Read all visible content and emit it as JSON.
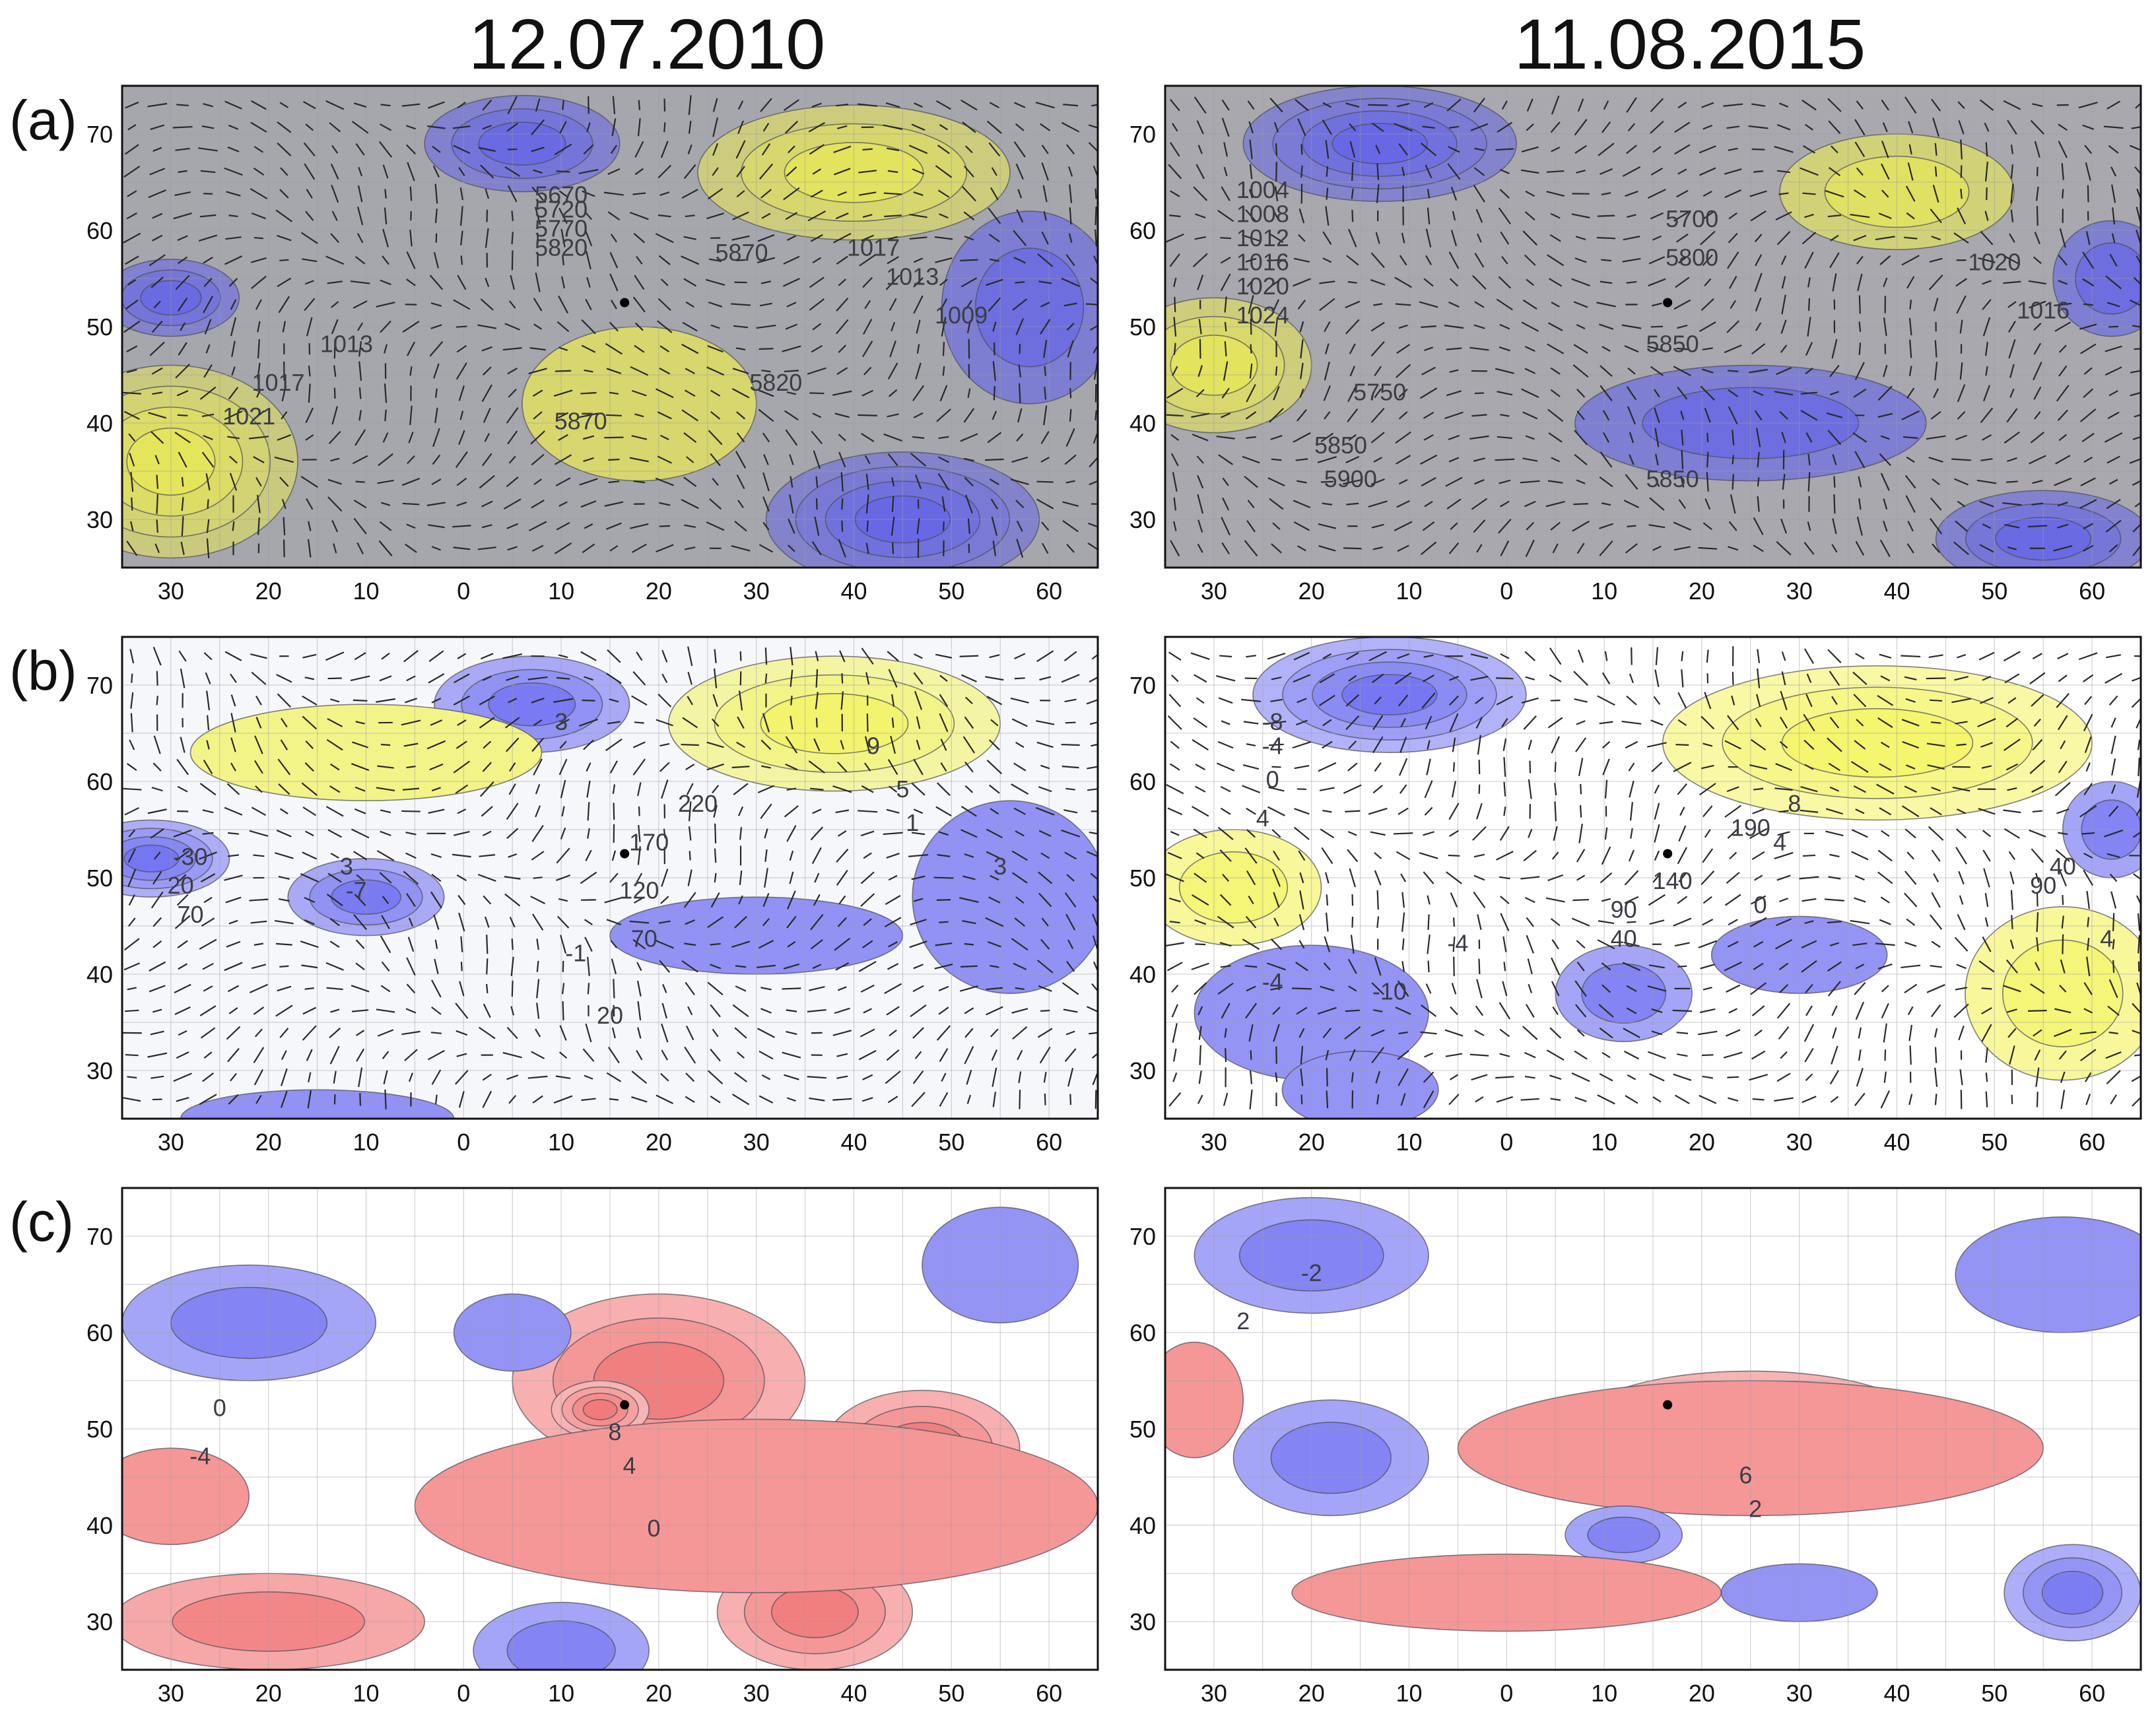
{
  "titles": [
    "12.07.2010",
    "11.08.2015"
  ],
  "row_labels": [
    "(a)",
    "(b)",
    "(c)"
  ],
  "axes": {
    "lon_ticks": [
      "30",
      "20",
      "10",
      "0",
      "10",
      "20",
      "30",
      "40",
      "50",
      "60"
    ],
    "lat_ticks": [
      "70",
      "60",
      "50",
      "40",
      "30"
    ],
    "lon_range": [
      -35,
      65
    ],
    "lat_range": [
      25,
      75
    ],
    "grid": true
  },
  "marker": {
    "lon": 16.5,
    "lat": 52.5,
    "name": "site-marker"
  },
  "colors": {
    "blue": "#5b5bf0",
    "yellow": "#f2f24a",
    "gray": "#a9a9b0",
    "red": "#ef5f5f",
    "white": "#ffffff"
  },
  "panels": [
    {
      "id": "a-2010",
      "row": 0,
      "col": 0,
      "scheme": "by",
      "base": "#a6a6ad",
      "vectors": true,
      "blobs": [
        {
          "lon": -30,
          "lat": 36,
          "rx": 13,
          "ry": 10,
          "kind": "y",
          "levels": 4
        },
        {
          "lon": -30,
          "lat": 53,
          "rx": 7,
          "ry": 4,
          "kind": "b",
          "levels": 3
        },
        {
          "lon": 6,
          "lat": 69,
          "rx": 10,
          "ry": 5,
          "kind": "b",
          "levels": 3
        },
        {
          "lon": 40,
          "lat": 66,
          "rx": 16,
          "ry": 7,
          "kind": "y",
          "levels": 3
        },
        {
          "lon": 45,
          "lat": 30,
          "rx": 14,
          "ry": 7,
          "kind": "b",
          "levels": 4
        },
        {
          "lon": 58,
          "lat": 52,
          "rx": 9,
          "ry": 10,
          "kind": "b",
          "levels": 2
        },
        {
          "lon": 18,
          "lat": 42,
          "rx": 12,
          "ry": 8,
          "kind": "y",
          "levels": 1
        }
      ],
      "labels": [
        {
          "text": "5670",
          "lon": 10,
          "lat": 63.5
        },
        {
          "text": "5720",
          "lon": 10,
          "lat": 62
        },
        {
          "text": "5770",
          "lon": 10,
          "lat": 60
        },
        {
          "text": "5820",
          "lon": 10,
          "lat": 58
        },
        {
          "text": "5870",
          "lon": 28.5,
          "lat": 57.5
        },
        {
          "text": "1017",
          "lon": 42,
          "lat": 58
        },
        {
          "text": "1013",
          "lon": 46,
          "lat": 55
        },
        {
          "text": "1009",
          "lon": 51,
          "lat": 51
        },
        {
          "text": "1013",
          "lon": -12,
          "lat": 48
        },
        {
          "text": "1017",
          "lon": -19,
          "lat": 44
        },
        {
          "text": "1021",
          "lon": -22,
          "lat": 40.5
        },
        {
          "text": "5870",
          "lon": 12,
          "lat": 40
        },
        {
          "text": "5820",
          "lon": 32,
          "lat": 44
        }
      ]
    },
    {
      "id": "a-2015",
      "row": 0,
      "col": 1,
      "scheme": "by",
      "base": "#a8a8ae",
      "vectors": true,
      "blobs": [
        {
          "lon": -13,
          "lat": 69,
          "rx": 14,
          "ry": 6,
          "kind": "b",
          "levels": 4
        },
        {
          "lon": -30,
          "lat": 46,
          "rx": 10,
          "ry": 7,
          "kind": "y",
          "levels": 3
        },
        {
          "lon": 40,
          "lat": 64,
          "rx": 12,
          "ry": 6,
          "kind": "y",
          "levels": 2
        },
        {
          "lon": 55,
          "lat": 28,
          "rx": 11,
          "ry": 5,
          "kind": "b",
          "levels": 3
        },
        {
          "lon": 25,
          "lat": 40,
          "rx": 18,
          "ry": 6,
          "kind": "b",
          "levels": 2
        },
        {
          "lon": 62,
          "lat": 55,
          "rx": 6,
          "ry": 6,
          "kind": "b",
          "levels": 2
        }
      ],
      "labels": [
        {
          "text": "1004",
          "lon": -25,
          "lat": 64
        },
        {
          "text": "1008",
          "lon": -25,
          "lat": 61.5
        },
        {
          "text": "1012",
          "lon": -25,
          "lat": 59
        },
        {
          "text": "1016",
          "lon": -25,
          "lat": 56.5
        },
        {
          "text": "1020",
          "lon": -25,
          "lat": 54
        },
        {
          "text": "1024",
          "lon": -25,
          "lat": 51
        },
        {
          "text": "5700",
          "lon": 19,
          "lat": 61
        },
        {
          "text": "5800",
          "lon": 19,
          "lat": 57
        },
        {
          "text": "5850",
          "lon": 17,
          "lat": 48
        },
        {
          "text": "1020",
          "lon": 50,
          "lat": 56.5
        },
        {
          "text": "1016",
          "lon": 55,
          "lat": 51.5
        },
        {
          "text": "5750",
          "lon": -13,
          "lat": 43
        },
        {
          "text": "5850",
          "lon": -17,
          "lat": 37.5
        },
        {
          "text": "5900",
          "lon": -16,
          "lat": 34
        },
        {
          "text": "5850",
          "lon": 17,
          "lat": 34
        }
      ]
    },
    {
      "id": "b-2010",
      "row": 1,
      "col": 0,
      "scheme": "by",
      "base": "#f6f7fb",
      "vectors": true,
      "blobs": [
        {
          "lon": -32,
          "lat": 52,
          "rx": 8,
          "ry": 4,
          "kind": "b",
          "levels": 4
        },
        {
          "lon": -10,
          "lat": 48,
          "rx": 8,
          "ry": 4,
          "kind": "b",
          "levels": 3
        },
        {
          "lon": 7,
          "lat": 68,
          "rx": 10,
          "ry": 5,
          "kind": "b",
          "levels": 3
        },
        {
          "lon": 38,
          "lat": 66,
          "rx": 17,
          "ry": 7,
          "kind": "y",
          "levels": 3
        },
        {
          "lon": 56,
          "lat": 48,
          "rx": 10,
          "ry": 10,
          "kind": "b",
          "levels": 1
        },
        {
          "lon": 30,
          "lat": 44,
          "rx": 15,
          "ry": 4,
          "kind": "b",
          "levels": 1
        },
        {
          "lon": -10,
          "lat": 63,
          "rx": 18,
          "ry": 5,
          "kind": "y",
          "levels": 1
        },
        {
          "lon": -15,
          "lat": 25,
          "rx": 14,
          "ry": 3,
          "kind": "b",
          "levels": 1
        }
      ],
      "labels": [
        {
          "text": "3",
          "lon": 10,
          "lat": 66
        },
        {
          "text": "9",
          "lon": 42,
          "lat": 63.5
        },
        {
          "text": "220",
          "lon": 24,
          "lat": 57.5
        },
        {
          "text": "5",
          "lon": 45,
          "lat": 59
        },
        {
          "text": "1",
          "lon": 46,
          "lat": 55.5
        },
        {
          "text": "170",
          "lon": 19,
          "lat": 53.5
        },
        {
          "text": "3",
          "lon": 55,
          "lat": 51
        },
        {
          "text": "3",
          "lon": -12,
          "lat": 51
        },
        {
          "text": "-7",
          "lon": -11,
          "lat": 48.5
        },
        {
          "text": "-30",
          "lon": -28,
          "lat": 52
        },
        {
          "text": "20",
          "lon": -29,
          "lat": 49
        },
        {
          "text": "70",
          "lon": -28,
          "lat": 46
        },
        {
          "text": "120",
          "lon": 18,
          "lat": 48.5
        },
        {
          "text": "70",
          "lon": 18.5,
          "lat": 43.5
        },
        {
          "text": "-1",
          "lon": 11.5,
          "lat": 42
        },
        {
          "text": "20",
          "lon": 15,
          "lat": 35.5
        }
      ]
    },
    {
      "id": "b-2015",
      "row": 1,
      "col": 1,
      "scheme": "by",
      "base": "#ffffff",
      "vectors": true,
      "blobs": [
        {
          "lon": -12,
          "lat": 69,
          "rx": 14,
          "ry": 6,
          "kind": "b",
          "levels": 4
        },
        {
          "lon": 38,
          "lat": 64,
          "rx": 22,
          "ry": 8,
          "kind": "y",
          "levels": 3
        },
        {
          "lon": -28,
          "lat": 49,
          "rx": 9,
          "ry": 6,
          "kind": "y",
          "levels": 2
        },
        {
          "lon": 57,
          "lat": 38,
          "rx": 10,
          "ry": 9,
          "kind": "y",
          "levels": 2
        },
        {
          "lon": 12,
          "lat": 38,
          "rx": 7,
          "ry": 5,
          "kind": "b",
          "levels": 2
        },
        {
          "lon": -20,
          "lat": 36,
          "rx": 12,
          "ry": 7,
          "kind": "b",
          "levels": 1
        },
        {
          "lon": -15,
          "lat": 28,
          "rx": 8,
          "ry": 4,
          "kind": "b",
          "levels": 1
        },
        {
          "lon": 62,
          "lat": 55,
          "rx": 5,
          "ry": 5,
          "kind": "b",
          "levels": 2
        },
        {
          "lon": 30,
          "lat": 42,
          "rx": 9,
          "ry": 4,
          "kind": "b",
          "levels": 1
        }
      ],
      "labels": [
        {
          "text": "-8",
          "lon": -24,
          "lat": 66
        },
        {
          "text": "-4",
          "lon": -24,
          "lat": 63.5
        },
        {
          "text": "0",
          "lon": -24,
          "lat": 60
        },
        {
          "text": "4",
          "lon": -25,
          "lat": 56
        },
        {
          "text": "8",
          "lon": 29.5,
          "lat": 57.5
        },
        {
          "text": "190",
          "lon": 25,
          "lat": 55
        },
        {
          "text": "4",
          "lon": 28,
          "lat": 53.5
        },
        {
          "text": "140",
          "lon": 17,
          "lat": 49.5
        },
        {
          "text": "0",
          "lon": 26,
          "lat": 47
        },
        {
          "text": "90",
          "lon": 12,
          "lat": 46.5
        },
        {
          "text": "40",
          "lon": 12,
          "lat": 43.5
        },
        {
          "text": "40",
          "lon": 57,
          "lat": 51
        },
        {
          "text": "90",
          "lon": 55,
          "lat": 49
        },
        {
          "text": "4",
          "lon": 61.5,
          "lat": 43.5
        },
        {
          "text": "-4",
          "lon": -5,
          "lat": 43
        },
        {
          "text": "-4",
          "lon": -24,
          "lat": 39
        },
        {
          "text": "-10",
          "lon": -12,
          "lat": 38
        }
      ]
    },
    {
      "id": "c-2010",
      "row": 2,
      "col": 0,
      "scheme": "rb",
      "base": "#ffffff",
      "vectors": false,
      "blobs": [
        {
          "lon": 20,
          "lat": 55,
          "rx": 15,
          "ry": 9,
          "kind": "r",
          "levels": 3
        },
        {
          "lon": 14,
          "lat": 52,
          "rx": 5,
          "ry": 3,
          "kind": "r",
          "levels": 4
        },
        {
          "lon": 47,
          "lat": 48,
          "rx": 10,
          "ry": 6,
          "kind": "r",
          "levels": 3
        },
        {
          "lon": -20,
          "lat": 30,
          "rx": 16,
          "ry": 5,
          "kind": "r",
          "levels": 2
        },
        {
          "lon": 36,
          "lat": 31,
          "rx": 10,
          "ry": 6,
          "kind": "r",
          "levels": 3
        },
        {
          "lon": -22,
          "lat": 61,
          "rx": 13,
          "ry": 6,
          "kind": "b",
          "levels": 2
        },
        {
          "lon": 5,
          "lat": 60,
          "rx": 6,
          "ry": 4,
          "kind": "b",
          "levels": 1
        },
        {
          "lon": 55,
          "lat": 67,
          "rx": 8,
          "ry": 6,
          "kind": "b",
          "levels": 1
        },
        {
          "lon": 10,
          "lat": 27,
          "rx": 9,
          "ry": 5,
          "kind": "b",
          "levels": 2
        },
        {
          "lon": -30,
          "lat": 43,
          "rx": 8,
          "ry": 5,
          "kind": "r",
          "levels": 1
        },
        {
          "lon": 30,
          "lat": 42,
          "rx": 35,
          "ry": 9,
          "kind": "r",
          "levels": 1
        }
      ],
      "labels": [
        {
          "text": "0",
          "lon": -25,
          "lat": 52
        },
        {
          "text": "-4",
          "lon": -27,
          "lat": 47
        },
        {
          "text": "8",
          "lon": 15.5,
          "lat": 49.5
        },
        {
          "text": "4",
          "lon": 17,
          "lat": 46
        },
        {
          "text": "0",
          "lon": 19.5,
          "lat": 39.5
        }
      ]
    },
    {
      "id": "c-2015",
      "row": 2,
      "col": 1,
      "scheme": "rb",
      "base": "#ffffff",
      "vectors": false,
      "blobs": [
        {
          "lon": 25,
          "lat": 51,
          "rx": 17,
          "ry": 5,
          "kind": "r",
          "levels": 4
        },
        {
          "lon": 25,
          "lat": 48,
          "rx": 30,
          "ry": 7,
          "kind": "r",
          "levels": 1
        },
        {
          "lon": -20,
          "lat": 68,
          "rx": 12,
          "ry": 6,
          "kind": "b",
          "levels": 2
        },
        {
          "lon": -18,
          "lat": 47,
          "rx": 10,
          "ry": 6,
          "kind": "b",
          "levels": 2
        },
        {
          "lon": 58,
          "lat": 33,
          "rx": 7,
          "ry": 5,
          "kind": "b",
          "levels": 3
        },
        {
          "lon": 57,
          "lat": 66,
          "rx": 11,
          "ry": 6,
          "kind": "b",
          "levels": 1
        },
        {
          "lon": 12,
          "lat": 39,
          "rx": 6,
          "ry": 3,
          "kind": "b",
          "levels": 2
        },
        {
          "lon": -32,
          "lat": 53,
          "rx": 5,
          "ry": 6,
          "kind": "r",
          "levels": 1
        },
        {
          "lon": 0,
          "lat": 33,
          "rx": 22,
          "ry": 4,
          "kind": "r",
          "levels": 1
        },
        {
          "lon": 30,
          "lat": 33,
          "rx": 8,
          "ry": 3,
          "kind": "b",
          "levels": 1
        }
      ],
      "labels": [
        {
          "text": "-2",
          "lon": -20,
          "lat": 66
        },
        {
          "text": "2",
          "lon": -27,
          "lat": 61
        },
        {
          "text": "6",
          "lon": 24.5,
          "lat": 45
        },
        {
          "text": "2",
          "lon": 25.5,
          "lat": 41.5
        }
      ]
    }
  ]
}
